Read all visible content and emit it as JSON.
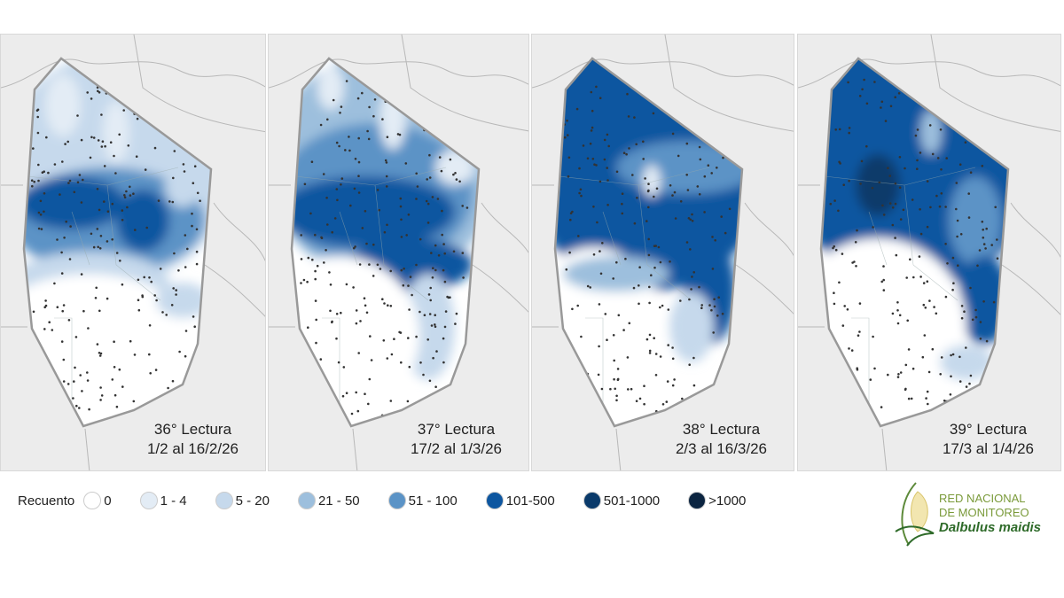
{
  "panels": [
    {
      "title": "36° Lectura",
      "dates": "1/2 al 16/2/26"
    },
    {
      "title": "37° Lectura",
      "dates": "17/2 al 1/3/26"
    },
    {
      "title": "38° Lectura",
      "dates": "2/3 al 16/3/26"
    },
    {
      "title": "39° Lectura",
      "dates": "17/3 al 1/4/26"
    }
  ],
  "legend": {
    "label": "Recuento",
    "items": [
      {
        "label": "0",
        "color": "#ffffff"
      },
      {
        "label": "1 - 4",
        "color": "#e3ecf5"
      },
      {
        "label": "5 - 20",
        "color": "#c6d9ec"
      },
      {
        "label": "21 - 50",
        "color": "#9dbfdd"
      },
      {
        "label": "51 - 100",
        "color": "#5b93c6"
      },
      {
        "label": "101-500",
        "color": "#0d56a0"
      },
      {
        "label": "501-1000",
        "color": "#0a3a6a"
      },
      {
        "label": ">1000",
        "color": "#0b2440"
      }
    ]
  },
  "logo": {
    "line1": "RED NACIONAL",
    "line2": "DE MONITOREO",
    "line3": "Dalbulus maidis"
  }
}
